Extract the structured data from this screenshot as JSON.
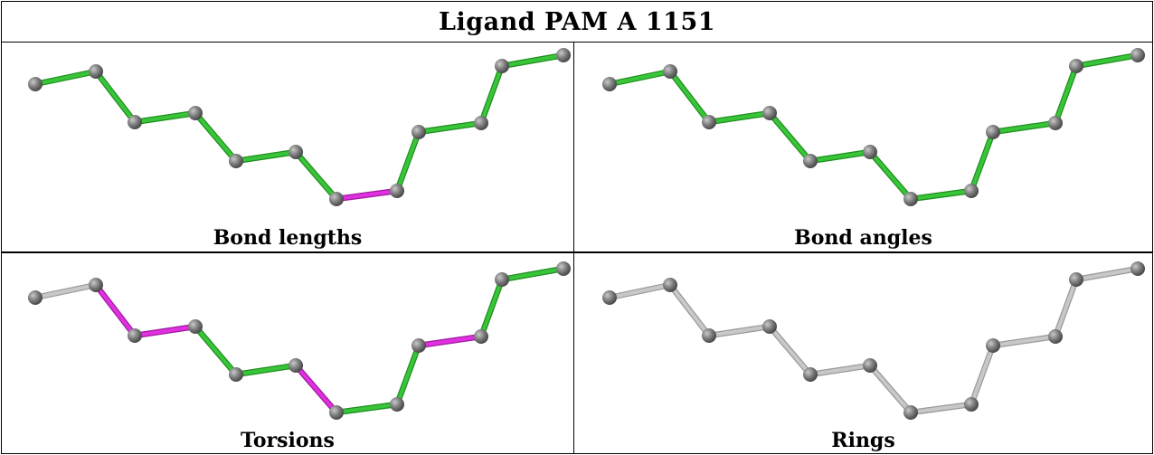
{
  "title": "Ligand PAM A 1151",
  "colors": {
    "ok": "#39c539",
    "outlier": "#e030e0",
    "none": "#c8c8c8",
    "atom": "#7a7a7a"
  },
  "atoms_count": 13,
  "panels": [
    {
      "caption": "Bond lengths",
      "bond_status": [
        "ok",
        "ok",
        "ok",
        "ok",
        "ok",
        "ok",
        "outlier",
        "ok",
        "ok",
        "ok",
        "ok",
        "ok"
      ]
    },
    {
      "caption": "Bond angles",
      "bond_status": [
        "ok",
        "ok",
        "ok",
        "ok",
        "ok",
        "ok",
        "ok",
        "ok",
        "ok",
        "ok",
        "ok",
        "ok"
      ]
    },
    {
      "caption": "Torsions",
      "bond_status": [
        "none",
        "outlier",
        "outlier",
        "ok",
        "ok",
        "outlier",
        "ok",
        "ok",
        "outlier",
        "ok",
        "ok",
        "none"
      ]
    },
    {
      "caption": "Rings",
      "bond_status": [
        "none",
        "none",
        "none",
        "none",
        "none",
        "none",
        "none",
        "none",
        "none",
        "none",
        "none",
        "none"
      ]
    }
  ]
}
